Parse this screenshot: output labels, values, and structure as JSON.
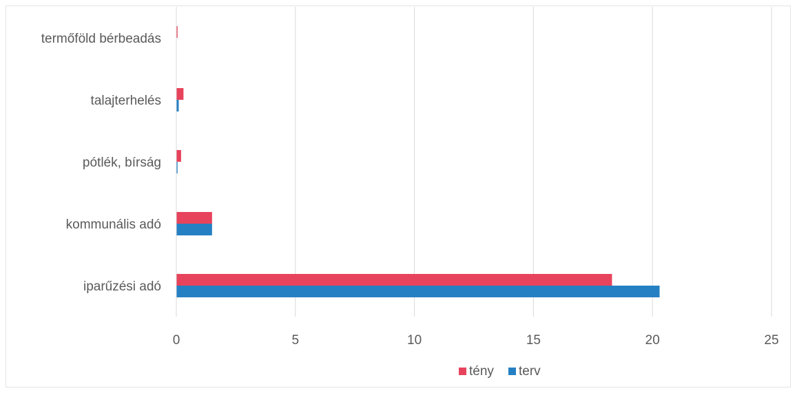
{
  "chart_data": {
    "type": "bar",
    "orientation": "horizontal",
    "categories": [
      "iparűzési adó",
      "kommunális adó",
      "pótlék, bírság",
      "talajterhelés",
      "termőföld bérbeadás"
    ],
    "series": [
      {
        "name": "tény",
        "color": "#e8435c",
        "values": [
          18.3,
          1.5,
          0.2,
          0.3,
          0.05
        ]
      },
      {
        "name": "terv",
        "color": "#2580c3",
        "values": [
          20.3,
          1.5,
          0.05,
          0.1,
          0.0
        ]
      }
    ],
    "xlim": [
      0,
      25
    ],
    "xticks": [
      0,
      5,
      10,
      15,
      20,
      25
    ],
    "grid": true,
    "legend_position": "bottom"
  }
}
